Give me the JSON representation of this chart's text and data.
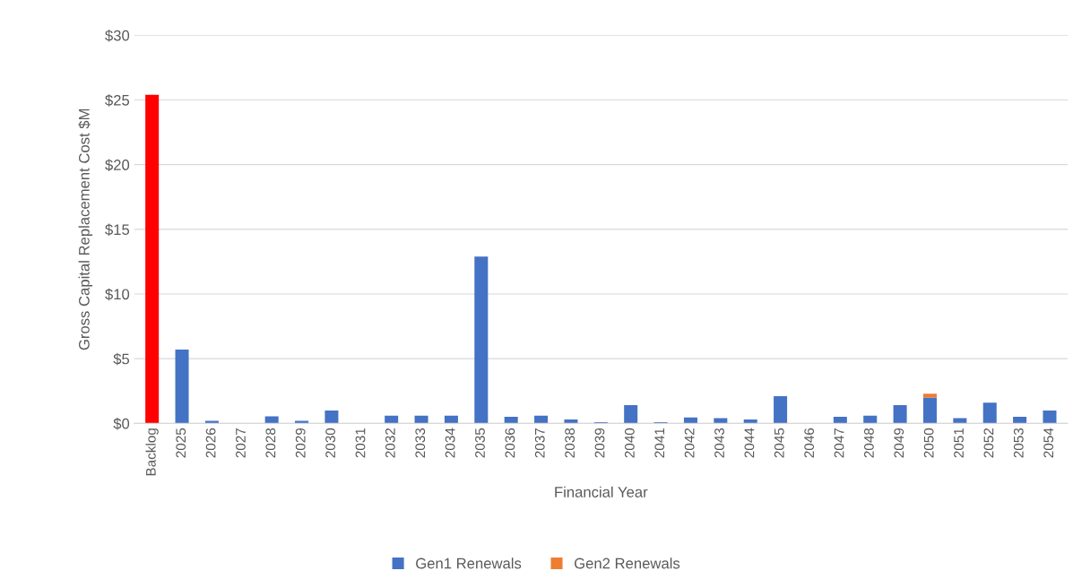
{
  "chart_data": {
    "type": "bar",
    "stacked": true,
    "xlabel": "Financial Year",
    "ylabel": "Gross Capital Replacement Cost $M",
    "categories": [
      "Backlog",
      "2025",
      "2026",
      "2027",
      "2028",
      "2029",
      "2030",
      "2031",
      "2032",
      "2033",
      "2034",
      "2035",
      "2036",
      "2037",
      "2038",
      "2039",
      "2040",
      "2041",
      "2042",
      "2043",
      "2044",
      "2045",
      "2046",
      "2047",
      "2048",
      "2049",
      "2050",
      "2051",
      "2052",
      "2053",
      "2054"
    ],
    "series": [
      {
        "name": "Gen1 Renewals",
        "color": "#4472c4",
        "colors": [
          "#ff0000",
          "#4472c4",
          "#4472c4",
          "#4472c4",
          "#4472c4",
          "#4472c4",
          "#4472c4",
          "#4472c4",
          "#4472c4",
          "#4472c4",
          "#4472c4",
          "#4472c4",
          "#4472c4",
          "#4472c4",
          "#4472c4",
          "#4472c4",
          "#4472c4",
          "#4472c4",
          "#4472c4",
          "#4472c4",
          "#4472c4",
          "#4472c4",
          "#4472c4",
          "#4472c4",
          "#4472c4",
          "#4472c4",
          "#4472c4",
          "#4472c4",
          "#4472c4",
          "#4472c4",
          "#4472c4"
        ],
        "values": [
          25.4,
          5.7,
          0.2,
          0,
          0.55,
          0.2,
          1.0,
          0,
          0.6,
          0.6,
          0.6,
          12.9,
          0.5,
          0.6,
          0.3,
          0.1,
          1.4,
          0.1,
          0.45,
          0.4,
          0.3,
          2.1,
          0,
          0.5,
          0.6,
          1.4,
          2.0,
          0.4,
          1.6,
          0.5,
          1.0
        ]
      },
      {
        "name": "Gen2 Renewals",
        "color": "#ed7d31",
        "values": [
          0,
          0,
          0,
          0,
          0,
          0,
          0,
          0,
          0,
          0,
          0,
          0,
          0,
          0,
          0,
          0,
          0,
          0,
          0,
          0,
          0,
          0,
          0,
          0,
          0,
          0,
          0.3,
          0,
          0,
          0,
          0
        ]
      }
    ],
    "ylim": [
      0,
      30
    ],
    "yticks": [
      {
        "value": 0,
        "label": "$0"
      },
      {
        "value": 5,
        "label": "$5"
      },
      {
        "value": 10,
        "label": "$10"
      },
      {
        "value": 15,
        "label": "$15"
      },
      {
        "value": 20,
        "label": "$20"
      },
      {
        "value": 25,
        "label": "$25"
      },
      {
        "value": 30,
        "label": "$30"
      }
    ],
    "grid": "y",
    "legend": "bottom"
  }
}
